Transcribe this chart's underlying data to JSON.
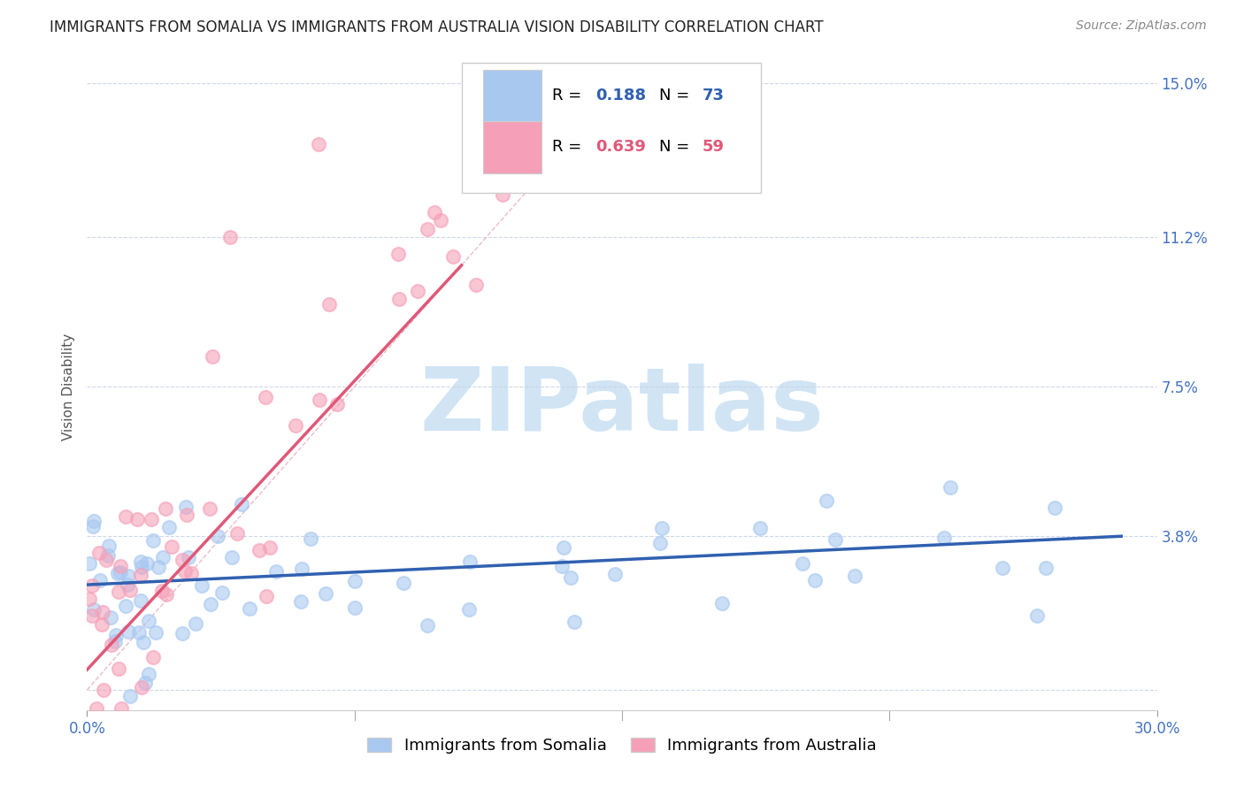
{
  "title": "IMMIGRANTS FROM SOMALIA VS IMMIGRANTS FROM AUSTRALIA VISION DISABILITY CORRELATION CHART",
  "source": "Source: ZipAtlas.com",
  "xlabel_somalia": "Immigrants from Somalia",
  "xlabel_australia": "Immigrants from Australia",
  "ylabel": "Vision Disability",
  "xlim": [
    0.0,
    0.3
  ],
  "ylim": [
    -0.005,
    0.155
  ],
  "yticks": [
    0.0,
    0.038,
    0.075,
    0.112,
    0.15
  ],
  "ytick_labels": [
    "",
    "3.8%",
    "7.5%",
    "11.2%",
    "15.0%"
  ],
  "xtick_labels": [
    "0.0%",
    "30.0%"
  ],
  "xtick_positions": [
    0.0,
    0.3
  ],
  "somalia_R": 0.188,
  "somalia_N": 73,
  "australia_R": 0.639,
  "australia_N": 59,
  "somalia_color": "#a8c8f0",
  "australia_color": "#f5a0b8",
  "somalia_line_color": "#3060b0",
  "australia_line_color": "#e05878",
  "diagonal_color": "#cccccc",
  "grid_color": "#c8d4e8",
  "watermark_color": "#d0e4f4",
  "background_color": "#ffffff",
  "title_fontsize": 12,
  "source_fontsize": 10,
  "legend_fontsize": 13,
  "axis_label_fontsize": 11,
  "tick_fontsize": 12,
  "watermark_fontsize": 72,
  "somalia_line_x": [
    0.0,
    0.29
  ],
  "somalia_line_y": [
    0.026,
    0.038
  ],
  "australia_line_x": [
    0.0,
    0.105
  ],
  "australia_line_y": [
    0.005,
    0.105
  ]
}
